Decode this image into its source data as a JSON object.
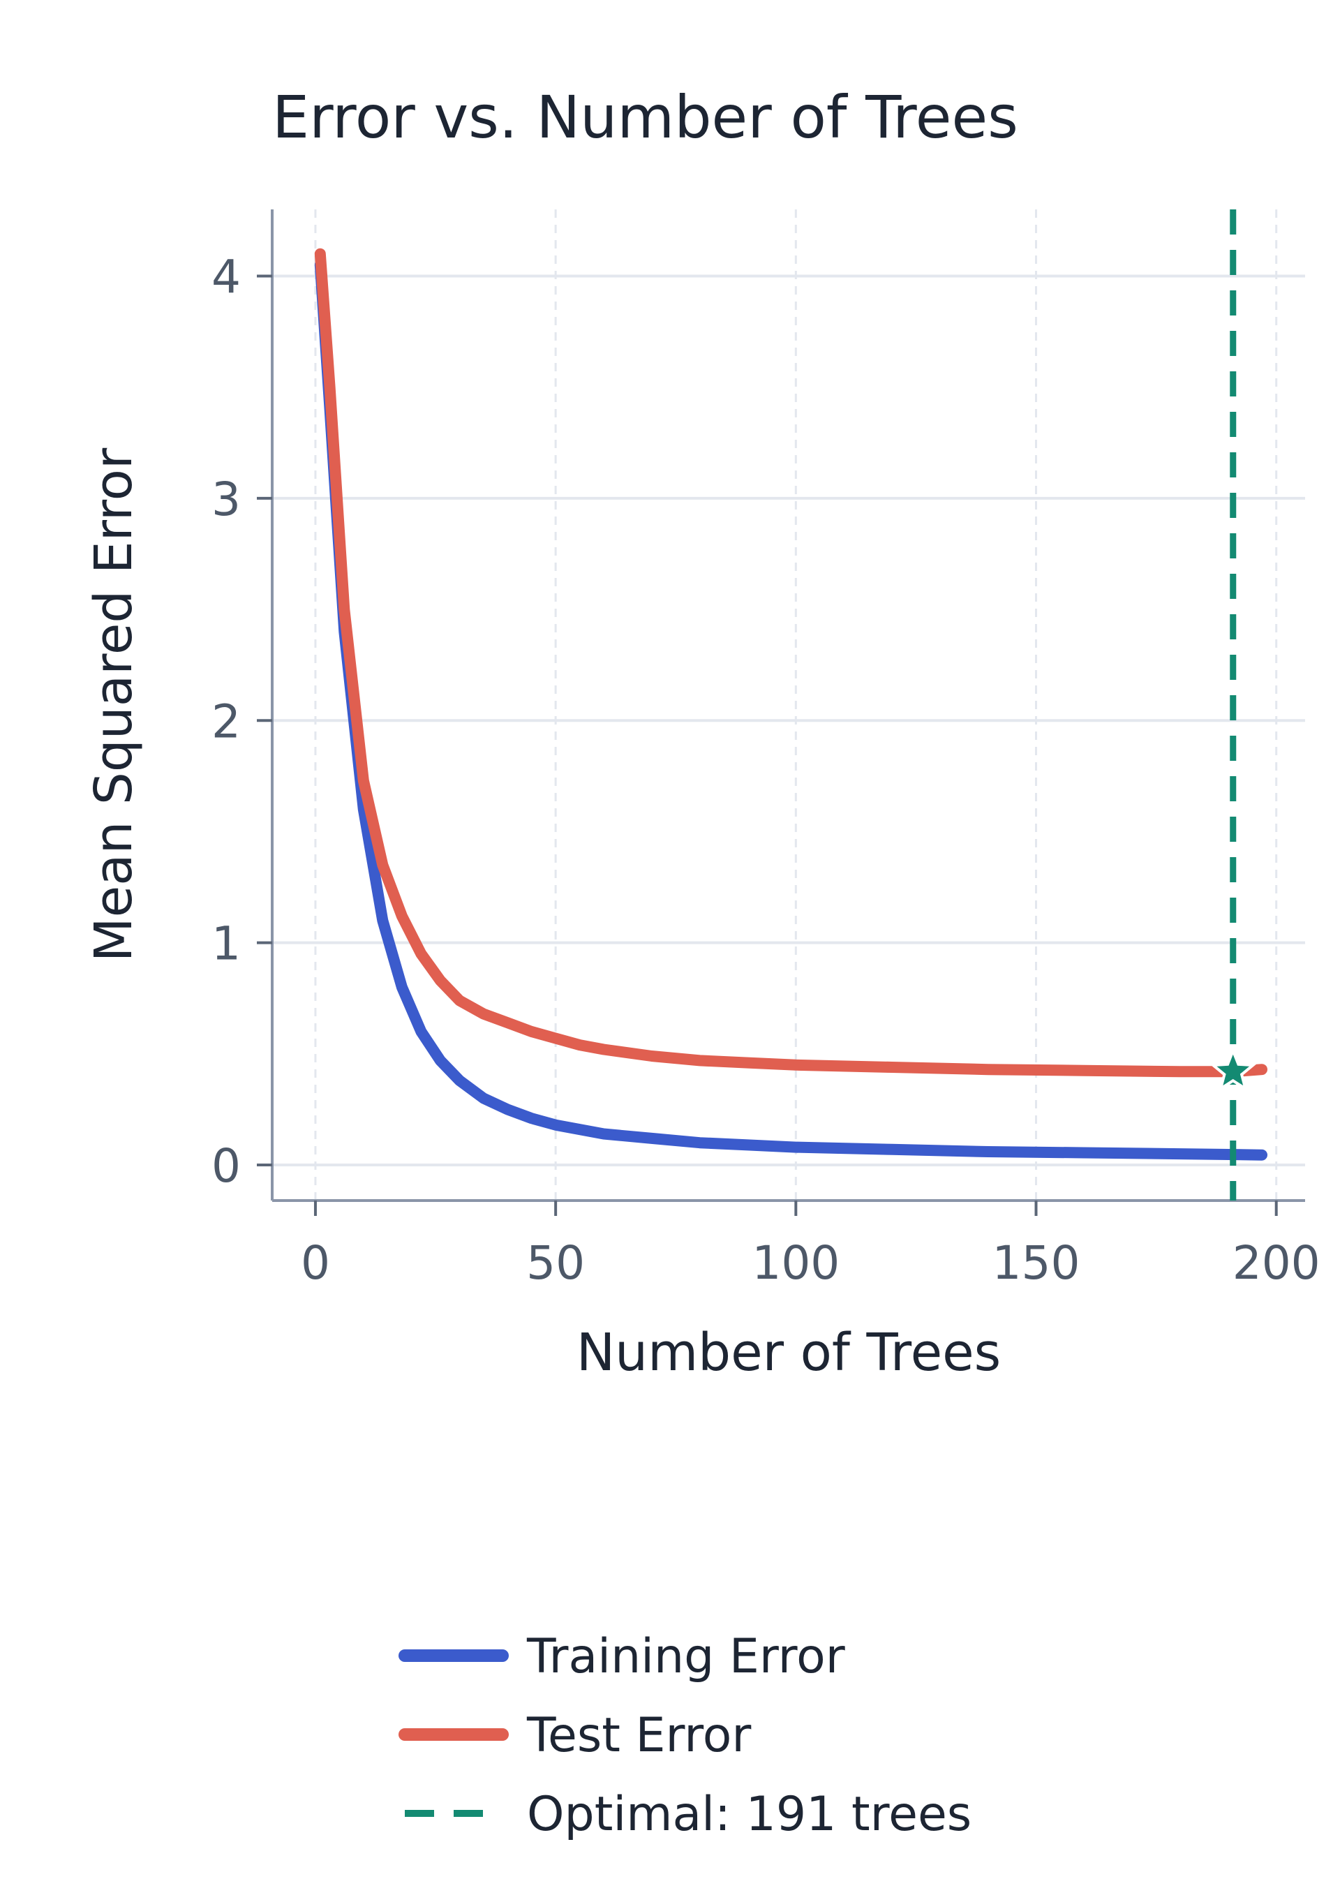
{
  "chart_data": {
    "type": "line",
    "title": "Error vs. Number of Trees",
    "xlabel": "Number of Trees",
    "ylabel": "Mean Squared Error",
    "xlim": [
      -9,
      206
    ],
    "ylim": [
      -0.16,
      4.3
    ],
    "xticks": [
      0,
      50,
      100,
      150,
      200
    ],
    "yticks": [
      0,
      1,
      2,
      3,
      4
    ],
    "x_tick_labels": [
      "0",
      "50",
      "100",
      "150",
      "200"
    ],
    "y_tick_labels": [
      "0",
      "1",
      "2",
      "3",
      "4"
    ],
    "grid": true,
    "legend_position": "bottom",
    "series": [
      {
        "name": "Training Error",
        "color": "#3b5bcc",
        "x": [
          1,
          3,
          6,
          10,
          14,
          18,
          22,
          26,
          30,
          35,
          40,
          45,
          50,
          55,
          60,
          70,
          80,
          90,
          100,
          120,
          140,
          160,
          180,
          197
        ],
        "y": [
          4.05,
          3.4,
          2.4,
          1.6,
          1.1,
          0.8,
          0.6,
          0.47,
          0.38,
          0.3,
          0.25,
          0.21,
          0.18,
          0.16,
          0.14,
          0.12,
          0.1,
          0.09,
          0.08,
          0.07,
          0.06,
          0.055,
          0.05,
          0.045
        ]
      },
      {
        "name": "Test Error",
        "color": "#e05f50",
        "x": [
          1,
          3,
          6,
          10,
          14,
          18,
          22,
          26,
          30,
          35,
          40,
          45,
          50,
          55,
          60,
          70,
          80,
          90,
          100,
          120,
          140,
          160,
          180,
          191,
          197
        ],
        "y": [
          4.1,
          3.5,
          2.5,
          1.73,
          1.35,
          1.12,
          0.95,
          0.83,
          0.74,
          0.68,
          0.64,
          0.6,
          0.57,
          0.54,
          0.52,
          0.49,
          0.47,
          0.46,
          0.45,
          0.44,
          0.43,
          0.425,
          0.42,
          0.42,
          0.43
        ]
      }
    ],
    "optimal": {
      "name": "Optimal: 191 trees",
      "x": 191,
      "y": 0.42,
      "color": "#138a72"
    }
  }
}
